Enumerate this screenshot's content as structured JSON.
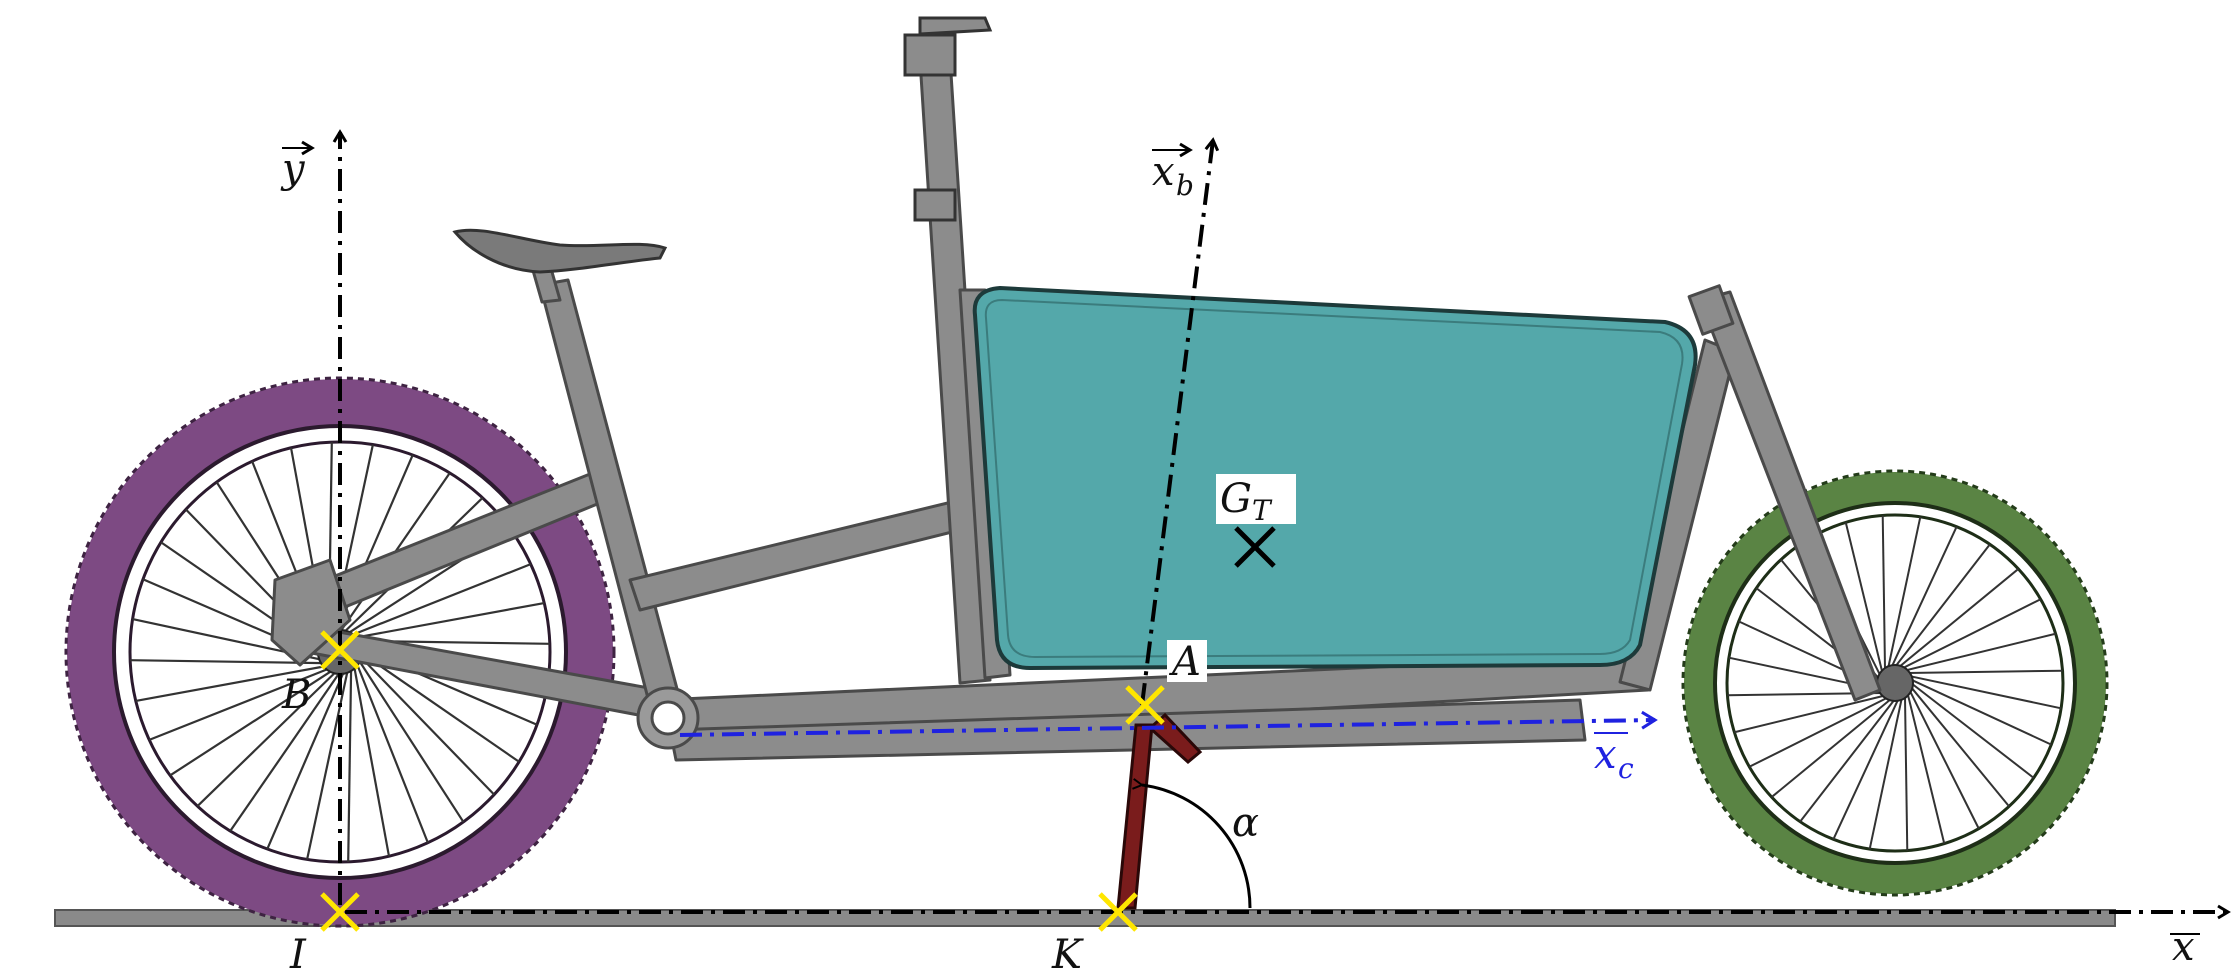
{
  "diagram": {
    "axes": {
      "y": {
        "label": "y"
      },
      "x": {
        "label": "x"
      },
      "xb": {
        "label": "x",
        "subscript": "b"
      },
      "xc": {
        "label": "x",
        "subscript": "c"
      }
    },
    "points": {
      "B": "B",
      "I": "I",
      "K": "K",
      "A": "A",
      "GT": {
        "label": "G",
        "subscript": "T"
      }
    },
    "angle": {
      "label": "α"
    },
    "colors": {
      "frame": "#8c8c8c",
      "frame_dark": "#4a4a4a",
      "cargo_box": "#54a8aa",
      "rear_wheel": "#7d4a83",
      "front_wheel": "#5a8444",
      "stand": "#7a1c1c",
      "marker": "#ffe600",
      "xc_axis": "#1f22e0",
      "ground": "#8a8a8a"
    }
  }
}
